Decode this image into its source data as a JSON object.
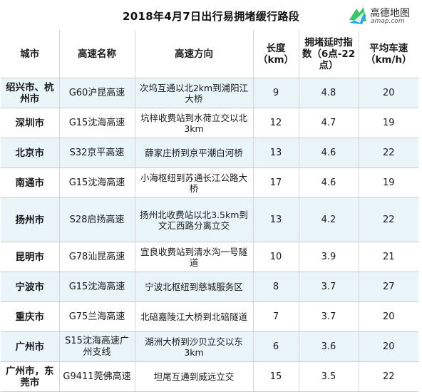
{
  "title": "2018年4月7日出行易拥堵缓行路段",
  "logo": {
    "name": "高德地图",
    "url": "amap.com"
  },
  "columns": [
    "城市",
    "高速名称",
    "高速方向",
    "长度（km）",
    "拥堵延时指数（6点-22点）",
    "平均车速（km/h）"
  ],
  "rows": [
    {
      "city": "绍兴市、杭州市",
      "highway": "G60沪昆高速",
      "direction": "次坞互通以北2km到浦阳江大桥",
      "length": "9",
      "index": "4.8",
      "speed": "20"
    },
    {
      "city": "深圳市",
      "highway": "G15沈海高速",
      "direction": "坑梓收费站到水荷立交以北3km",
      "length": "12",
      "index": "4.7",
      "speed": "19"
    },
    {
      "city": "北京市",
      "highway": "S32京平高速",
      "direction": "薛家庄桥到京平潮白河桥",
      "length": "13",
      "index": "4.6",
      "speed": "22"
    },
    {
      "city": "南通市",
      "highway": "G15沈海高速",
      "direction": "小海枢纽到苏通长江公路大桥",
      "length": "17",
      "index": "4.6",
      "speed": "19"
    },
    {
      "city": "扬州市",
      "highway": "S28启扬高速",
      "direction": "扬州北收费站以北3.5km到文汇西路分离立交",
      "length": "13",
      "index": "4.2",
      "speed": "22"
    },
    {
      "city": "昆明市",
      "highway": "G78汕昆高速",
      "direction": "宜良收费站到清水沟一号隧道",
      "length": "10",
      "index": "3.9",
      "speed": "21"
    },
    {
      "city": "宁波市",
      "highway": "G15沈海高速",
      "direction": "宁波北枢纽到慈城服务区",
      "length": "8",
      "index": "3.7",
      "speed": "27"
    },
    {
      "city": "重庆市",
      "highway": "G75兰海高速",
      "direction": "北碚嘉陵江大桥到北碚隧道",
      "length": "7",
      "index": "3.7",
      "speed": "20"
    },
    {
      "city": "广州市",
      "highway": "S15沈海高速广州支线",
      "direction": "湖洲大桥到沙贝立交以东3km",
      "length": "6",
      "index": "3.6",
      "speed": "20"
    },
    {
      "city": "广州市，东莞市",
      "highway": "G9411莞佛高速",
      "direction": "坦尾互通到威远立交",
      "length": "15",
      "index": "3.5",
      "speed": "22"
    }
  ],
  "colors": {
    "stripe": "#eaf5f9",
    "logo_blue": "#2aa7e8",
    "logo_green": "#3cc46c"
  }
}
